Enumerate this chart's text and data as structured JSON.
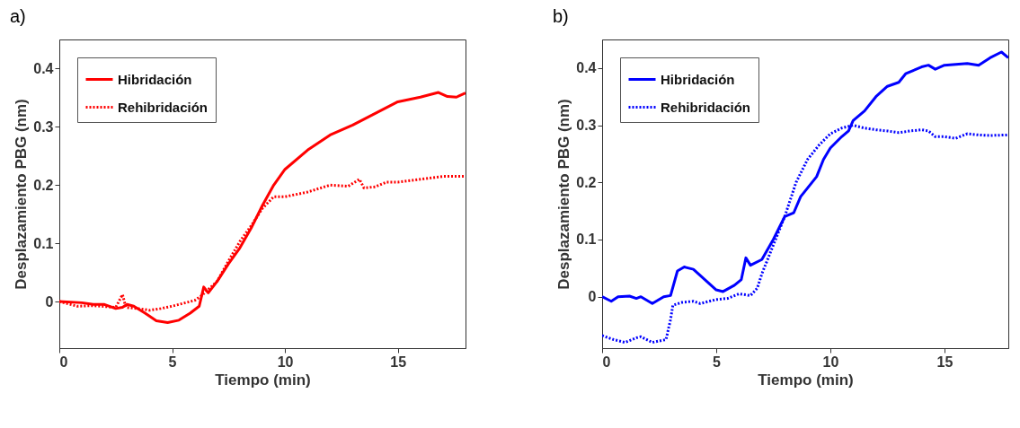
{
  "chart_data": [
    {
      "type": "line",
      "title": "a)",
      "xlabel": "Tiempo (min)",
      "ylabel": "Desplazamiento PBG (nm)",
      "xlim": [
        0,
        18
      ],
      "xticks": [
        0,
        5,
        10,
        15
      ],
      "ylim": [
        -0.08,
        0.45
      ],
      "yticks": [
        0,
        0.1,
        0.2,
        0.3,
        0.4
      ],
      "legend": "top left",
      "series": [
        {
          "name": "Hibridación",
          "color": "#ff0000",
          "line_style": "solid",
          "x": [
            0,
            1,
            1.5,
            2,
            2.5,
            2.8,
            3.0,
            3.3,
            3.8,
            4.3,
            4.8,
            5.3,
            5.8,
            6.2,
            6.4,
            6.6,
            7,
            7.5,
            8,
            8.5,
            9,
            9.5,
            10,
            11,
            12,
            13,
            14,
            15,
            16,
            16.8,
            17.2,
            17.6,
            18
          ],
          "values": [
            0,
            -0.002,
            -0.005,
            -0.005,
            -0.012,
            -0.01,
            -0.005,
            -0.008,
            -0.02,
            -0.033,
            -0.036,
            -0.032,
            -0.02,
            -0.008,
            0.025,
            0.015,
            0.035,
            0.065,
            0.092,
            0.126,
            0.165,
            0.2,
            0.227,
            0.26,
            0.286,
            0.303,
            0.323,
            0.343,
            0.351,
            0.359,
            0.352,
            0.351,
            0.358
          ]
        },
        {
          "name": "Rehibridación",
          "color": "#ff0000",
          "line_style": "dotted",
          "x": [
            0,
            0.8,
            1.5,
            2.5,
            2.8,
            2.95,
            3.5,
            4,
            4.5,
            5,
            5.5,
            6,
            6.3,
            7,
            7.5,
            8,
            8.5,
            9,
            9.5,
            10,
            11,
            12,
            12.8,
            13.3,
            13.5,
            14,
            14.5,
            15,
            16,
            17,
            18
          ],
          "values": [
            0,
            -0.008,
            -0.007,
            -0.01,
            0.012,
            -0.01,
            -0.012,
            -0.015,
            -0.012,
            -0.008,
            -0.003,
            0.002,
            0.01,
            0.035,
            0.07,
            0.103,
            0.13,
            0.16,
            0.18,
            0.18,
            0.188,
            0.2,
            0.198,
            0.21,
            0.195,
            0.197,
            0.205,
            0.205,
            0.21,
            0.215,
            0.215
          ]
        }
      ]
    },
    {
      "type": "line",
      "title": "b)",
      "xlabel": "Tiempo (min)",
      "ylabel": "Desplazamiento PBG (nm)",
      "xlim": [
        0,
        17.8
      ],
      "xticks": [
        0,
        5,
        10,
        15
      ],
      "ylim": [
        -0.09,
        0.45
      ],
      "yticks": [
        0,
        0.1,
        0.2,
        0.3,
        0.4
      ],
      "legend": "top left",
      "series": [
        {
          "name": "Hibridación",
          "color": "#0000ff",
          "line_style": "solid",
          "x": [
            0,
            0.4,
            0.7,
            1.2,
            1.5,
            1.7,
            2.2,
            2.7,
            3,
            3.3,
            3.6,
            4,
            4.5,
            5,
            5.3,
            5.8,
            6.1,
            6.3,
            6.5,
            7,
            7.5,
            8,
            8.4,
            8.7,
            9,
            9.4,
            9.7,
            10,
            10.5,
            10.8,
            11,
            11.5,
            12,
            12.5,
            13,
            13.3,
            14,
            14.3,
            14.6,
            15,
            16,
            16.5,
            17,
            17.5,
            17.8
          ],
          "values": [
            0,
            -0.008,
            0,
            0.001,
            -0.003,
            0,
            -0.012,
            0,
            0.002,
            0.045,
            0.052,
            0.048,
            0.03,
            0.012,
            0.009,
            0.02,
            0.03,
            0.068,
            0.055,
            0.065,
            0.1,
            0.14,
            0.147,
            0.175,
            0.19,
            0.21,
            0.24,
            0.26,
            0.28,
            0.29,
            0.308,
            0.325,
            0.35,
            0.368,
            0.375,
            0.39,
            0.402,
            0.405,
            0.398,
            0.405,
            0.408,
            0.405,
            0.418,
            0.428,
            0.418
          ]
        },
        {
          "name": "Rehibridación",
          "color": "#0000ff",
          "line_style": "dotted",
          "x": [
            0,
            0.5,
            1,
            1.5,
            1.7,
            2.2,
            2.8,
            3,
            3.1,
            3.5,
            4,
            4.3,
            5,
            5.5,
            6,
            6.5,
            6.8,
            7,
            7.3,
            7.6,
            8,
            8.5,
            9,
            9.5,
            10,
            10.5,
            11,
            11.5,
            12,
            12.5,
            13,
            13.5,
            14,
            14.3,
            14.6,
            15,
            15.5,
            16,
            16.5,
            17,
            17.8
          ],
          "values": [
            -0.068,
            -0.075,
            -0.08,
            -0.072,
            -0.07,
            -0.08,
            -0.075,
            -0.04,
            -0.015,
            -0.01,
            -0.008,
            -0.012,
            -0.005,
            -0.003,
            0.005,
            0.002,
            0.015,
            0.04,
            0.07,
            0.1,
            0.14,
            0.2,
            0.24,
            0.265,
            0.285,
            0.295,
            0.3,
            0.295,
            0.292,
            0.29,
            0.287,
            0.29,
            0.292,
            0.29,
            0.28,
            0.28,
            0.277,
            0.285,
            0.283,
            0.282,
            0.283
          ]
        }
      ]
    }
  ]
}
